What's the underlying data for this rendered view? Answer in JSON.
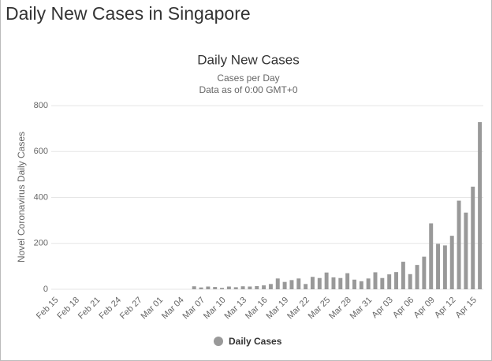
{
  "page_title": "Daily New Cases in Singapore",
  "chart_data": {
    "type": "bar",
    "title": "Daily New Cases",
    "subtitle": [
      "Cases per Day",
      "Data as of 0:00 GMT+0"
    ],
    "y_label": "Novel Coronavirus Daily Cases",
    "categories": [
      "Feb 15",
      null,
      null,
      "Feb 18",
      null,
      null,
      "Feb 21",
      null,
      null,
      "Feb 24",
      null,
      null,
      "Feb 27",
      null,
      null,
      "Mar 01",
      null,
      null,
      "Mar 04",
      null,
      null,
      "Mar 07",
      null,
      null,
      "Mar 10",
      null,
      null,
      "Mar 13",
      null,
      null,
      "Mar 16",
      null,
      null,
      "Mar 19",
      null,
      null,
      "Mar 22",
      null,
      null,
      "Mar 25",
      null,
      null,
      "Mar 28",
      null,
      null,
      "Mar 31",
      null,
      null,
      "Apr 03",
      null,
      null,
      "Apr 06",
      null,
      null,
      "Apr 09",
      null,
      null,
      "Apr 12",
      null,
      null,
      "Apr 15",
      null
    ],
    "series": [
      {
        "name": "Daily Cases",
        "color": "#999999",
        "values": [
          0,
          0,
          0,
          0,
          0,
          0,
          0,
          0,
          0,
          0,
          0,
          0,
          0,
          0,
          0,
          0,
          0,
          0,
          0,
          0,
          13,
          8,
          12,
          10,
          6,
          12,
          9,
          13,
          12,
          14,
          17,
          23,
          47,
          32,
          40,
          47,
          23,
          54,
          49,
          73,
          52,
          49,
          70,
          42,
          35,
          47,
          74,
          49,
          65,
          75,
          120,
          66,
          106,
          142,
          287,
          198,
          191,
          233,
          386,
          334,
          447,
          728
        ]
      }
    ],
    "ylim": [
      0,
      800
    ],
    "yticks": [
      0,
      200,
      400,
      600,
      800
    ],
    "grid": true,
    "legend": "bottom"
  }
}
